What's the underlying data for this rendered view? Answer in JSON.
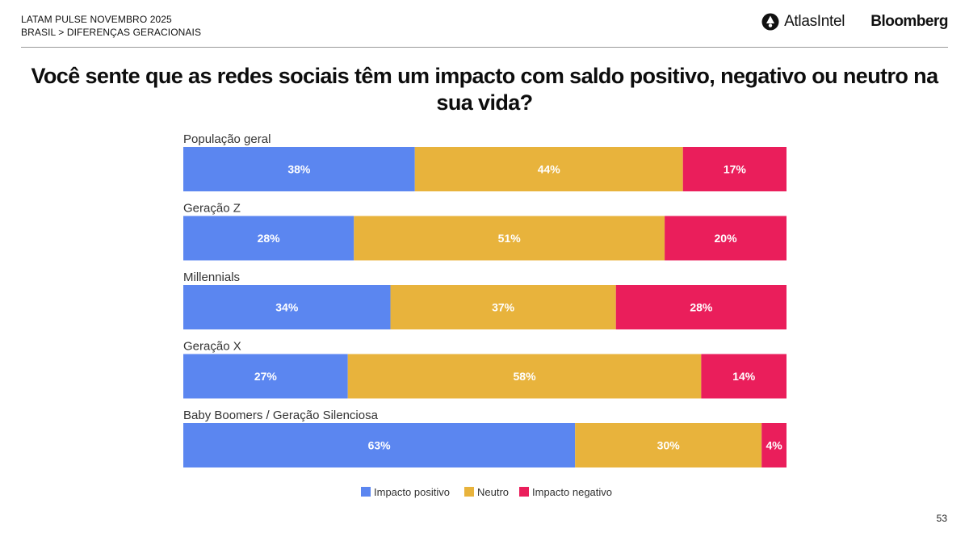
{
  "header": {
    "line1": "LATAM PULSE NOVEMBRO 2025",
    "line2": "BRASIL > DIFERENÇAS GERACIONAIS",
    "atlas_label": "AtlasIntel",
    "bloomberg_label": "Bloomberg"
  },
  "colors": {
    "positive": "#5b86f0",
    "neutral": "#e8b33c",
    "negative": "#ea1e5b"
  },
  "chart_data": {
    "type": "bar",
    "orientation": "horizontal-stacked-100",
    "title": "Você sente que as redes sociais têm um impacto com saldo positivo, negativo ou neutro na sua vida?",
    "categories": [
      "População geral",
      "Geração Z",
      "Millennials",
      "Geração X",
      "Baby Boomers / Geração Silenciosa"
    ],
    "series": [
      {
        "name": "Impacto positivo",
        "values": [
          38,
          28,
          34,
          27,
          63
        ],
        "labels": [
          "38%",
          "28%",
          "34%",
          "27%",
          "63%"
        ]
      },
      {
        "name": "Neutro",
        "values": [
          44,
          51,
          37,
          58,
          30
        ],
        "labels": [
          "44%",
          "51%",
          "37%",
          "58%",
          "30%"
        ]
      },
      {
        "name": "Impacto negativo",
        "values": [
          17,
          20,
          28,
          14,
          4
        ],
        "labels": [
          "17%",
          "20%",
          "28%",
          "14%",
          "4%"
        ]
      }
    ],
    "legend_position": "bottom-center"
  },
  "page_number": "53"
}
